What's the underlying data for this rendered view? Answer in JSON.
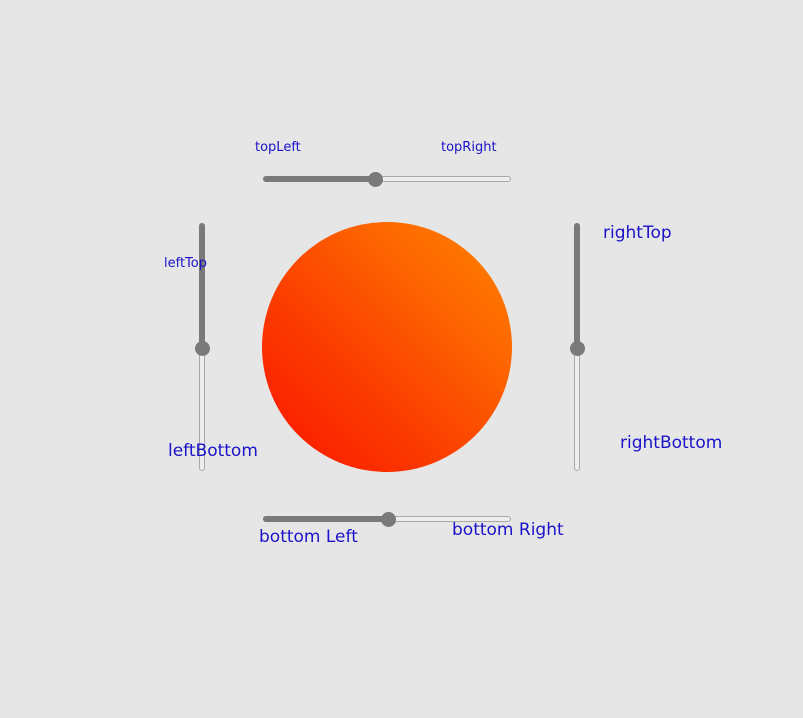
{
  "labels": {
    "top_left": "topLeft",
    "top_right": "topRight",
    "left_top": "leftTop",
    "left_bottom": "leftBottom",
    "right_top": "rightTop",
    "right_bottom": "rightBottom",
    "bottom_left": "bottom Left",
    "bottom_right": "bottom Right"
  },
  "sliders": {
    "top": {
      "value": 0.45
    },
    "bottom": {
      "value": 0.5
    },
    "left": {
      "value": 0.5
    },
    "right": {
      "value": 0.5
    }
  },
  "colors": {
    "label": "#1a13c9",
    "circle_start": "#fb1300",
    "circle_end": "#ff8400",
    "slider_fill": "#7a7a7a",
    "background": "#e7e6e6"
  }
}
